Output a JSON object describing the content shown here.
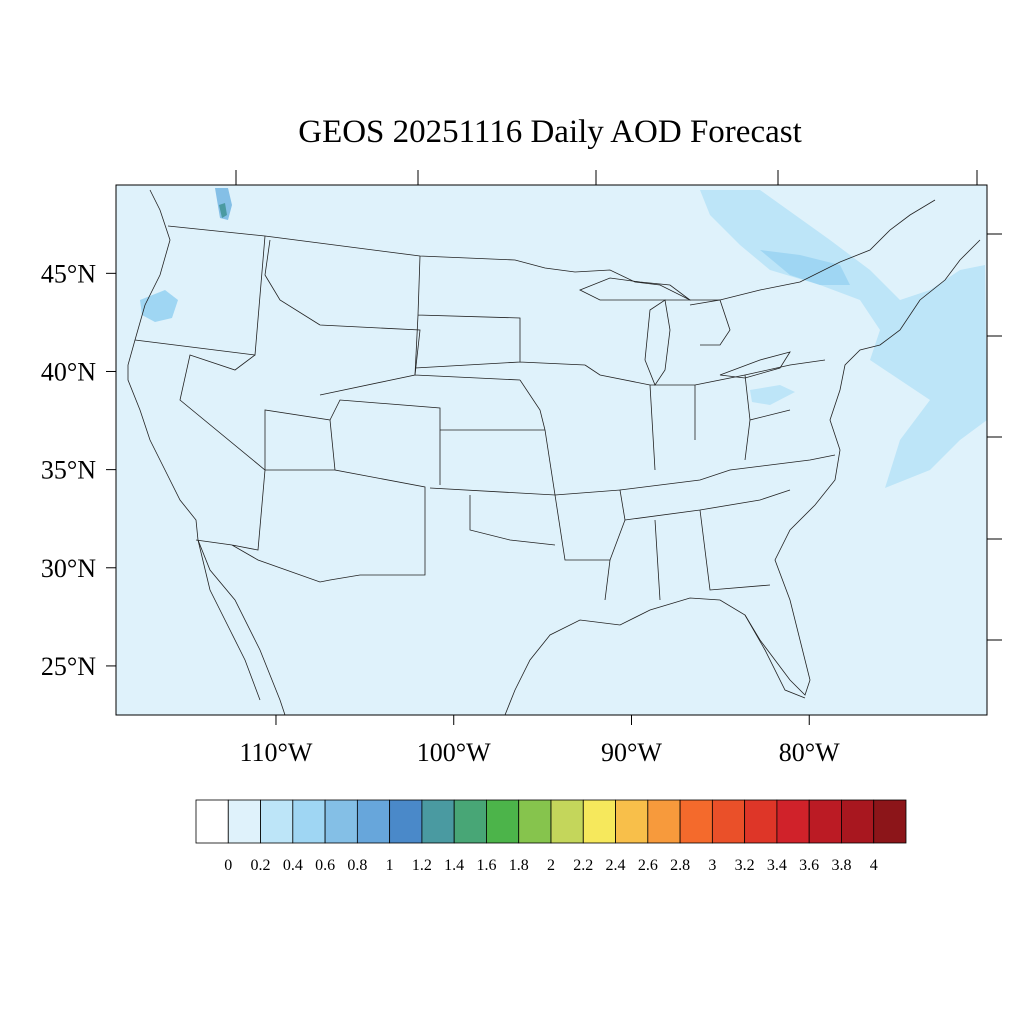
{
  "title": "GEOS 20251116 Daily AOD Forecast",
  "map": {
    "background_color": "#dff2fb",
    "lat_tick_labels": [
      {
        "label": "45°N",
        "lat": 45
      },
      {
        "label": "40°N",
        "lat": 40
      },
      {
        "label": "35°N",
        "lat": 35
      },
      {
        "label": "30°N",
        "lat": 30
      },
      {
        "label": "25°N",
        "lat": 25
      }
    ],
    "lon_tick_labels": [
      {
        "label": "110°W",
        "lon": -110
      },
      {
        "label": "100°W",
        "lon": -100
      },
      {
        "label": "90°W",
        "lon": -90
      },
      {
        "label": "80°W",
        "lon": -80
      }
    ],
    "lon_range": [
      -119,
      -70
    ],
    "lat_range": [
      22.5,
      49.5
    ]
  },
  "colorbar": {
    "labels": [
      "0",
      "0.2",
      "0.4",
      "0.6",
      "0.8",
      "1",
      "1.2",
      "1.4",
      "1.6",
      "1.8",
      "2",
      "2.2",
      "2.4",
      "2.6",
      "2.8",
      "3",
      "3.2",
      "3.4",
      "3.6",
      "3.8",
      "4"
    ],
    "colors": [
      "#ffffff",
      "#dff2fb",
      "#bde5f8",
      "#9fd6f3",
      "#84bfe6",
      "#67a6db",
      "#4a89c9",
      "#4a9aa1",
      "#48a676",
      "#4cb44a",
      "#86c44d",
      "#c4d65b",
      "#f6e85c",
      "#f8bf4a",
      "#f79a3c",
      "#f46a2c",
      "#ea5029",
      "#de3628",
      "#d0222a",
      "#bb1b24",
      "#a8171f",
      "#8c1519"
    ]
  }
}
